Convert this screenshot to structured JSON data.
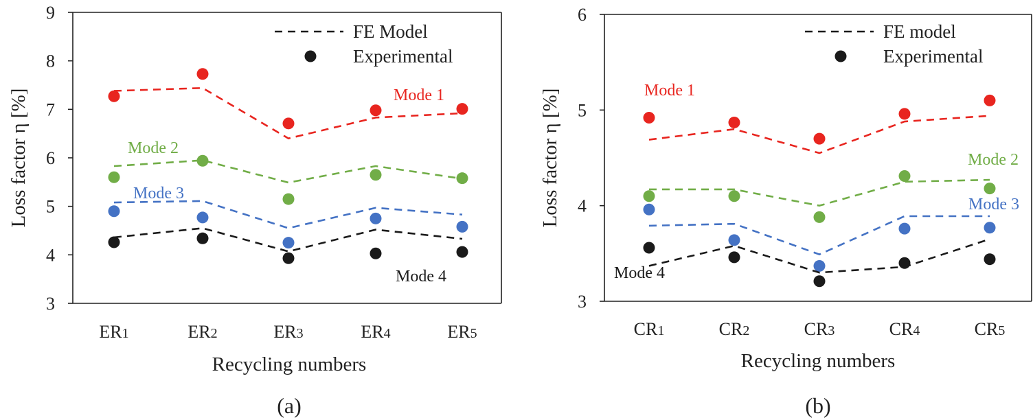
{
  "colors": {
    "mode1": "#e8251f",
    "mode2": "#71ad47",
    "mode3": "#4472c4",
    "mode4": "#1a1a1a",
    "axis": "#222222"
  },
  "chart_data": [
    {
      "panel": "a",
      "type": "line",
      "caption": "(a)",
      "xlabel": "Recycling numbers",
      "ylabel": "Loss factor η [%]",
      "ylim": [
        3,
        9
      ],
      "yticks": [
        "3",
        "4",
        "5",
        "6",
        "7",
        "8",
        "9"
      ],
      "categories": [
        {
          "base": "ER",
          "sub": "1"
        },
        {
          "base": "ER",
          "sub": "2"
        },
        {
          "base": "ER",
          "sub": "3"
        },
        {
          "base": "ER",
          "sub": "4"
        },
        {
          "base": "ER",
          "sub": "5"
        }
      ],
      "legend": {
        "model_label": "FE Model",
        "experimental_label": "Experimental",
        "placement": "top-right"
      },
      "series": [
        {
          "name": "Mode 1",
          "key": "mode1",
          "model": [
            7.38,
            7.44,
            6.4,
            6.83,
            6.92
          ],
          "experimental": [
            7.27,
            7.73,
            6.71,
            6.98,
            7.01
          ]
        },
        {
          "name": "Mode 2",
          "key": "mode2",
          "model": [
            5.83,
            5.95,
            5.49,
            5.83,
            5.57
          ],
          "experimental": [
            5.6,
            5.94,
            5.15,
            5.65,
            5.58
          ]
        },
        {
          "name": "Mode 3",
          "key": "mode3",
          "model": [
            5.08,
            5.11,
            4.55,
            4.97,
            4.83
          ],
          "experimental": [
            4.9,
            4.77,
            4.25,
            4.75,
            4.58
          ]
        },
        {
          "name": "Mode 4",
          "key": "mode4",
          "model": [
            4.36,
            4.55,
            4.07,
            4.52,
            4.33
          ],
          "experimental": [
            4.26,
            4.34,
            3.93,
            4.03,
            4.06
          ]
        }
      ]
    },
    {
      "panel": "b",
      "type": "line",
      "caption": "(b)",
      "xlabel": "Recycling numbers",
      "ylabel": "Loss factor η [%]",
      "ylim": [
        3,
        6
      ],
      "yticks": [
        "3",
        "4",
        "5",
        "6"
      ],
      "categories": [
        {
          "base": "CR",
          "sub": "1"
        },
        {
          "base": "CR",
          "sub": "2"
        },
        {
          "base": "CR",
          "sub": "3"
        },
        {
          "base": "CR",
          "sub": "4"
        },
        {
          "base": "CR",
          "sub": "5"
        }
      ],
      "legend": {
        "model_label": "FE model",
        "experimental_label": "Experimental",
        "placement": "top-right"
      },
      "series": [
        {
          "name": "Mode 1",
          "key": "mode1",
          "model": [
            4.69,
            4.8,
            4.55,
            4.88,
            4.94
          ],
          "experimental": [
            4.92,
            4.87,
            4.7,
            4.96,
            5.1
          ]
        },
        {
          "name": "Mode 2",
          "key": "mode2",
          "model": [
            4.17,
            4.17,
            4.0,
            4.25,
            4.27
          ],
          "experimental": [
            4.1,
            4.1,
            3.88,
            4.31,
            4.18
          ]
        },
        {
          "name": "Mode 3",
          "key": "mode3",
          "model": [
            3.79,
            3.81,
            3.49,
            3.89,
            3.89
          ],
          "experimental": [
            3.96,
            3.64,
            3.37,
            3.76,
            3.77
          ]
        },
        {
          "name": "Mode 4",
          "key": "mode4",
          "model": [
            3.37,
            3.58,
            3.3,
            3.36,
            3.65
          ],
          "experimental": [
            3.56,
            3.46,
            3.21,
            3.4,
            3.44
          ]
        }
      ]
    }
  ]
}
